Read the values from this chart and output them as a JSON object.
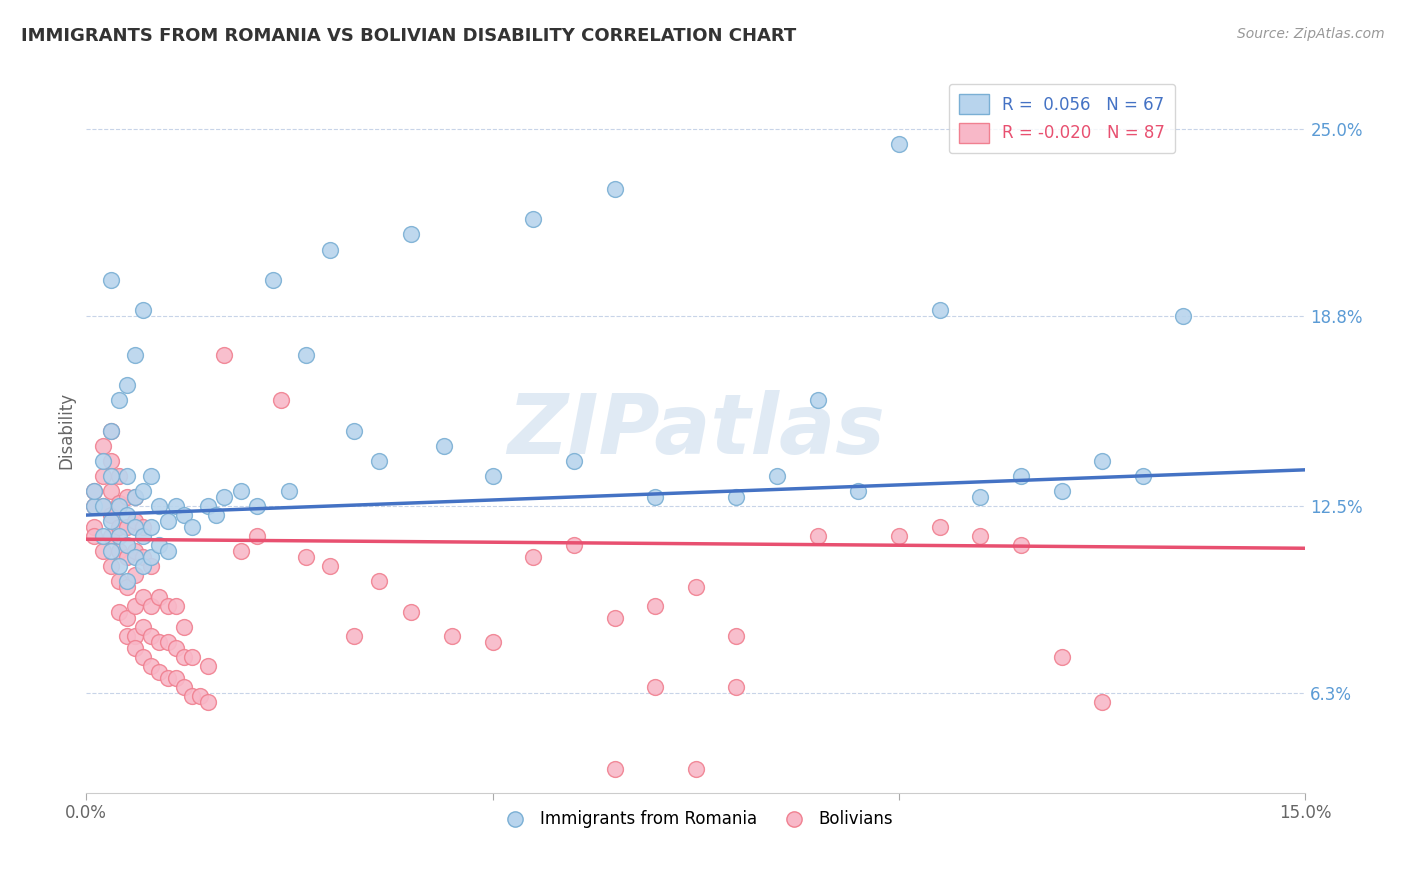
{
  "title": "IMMIGRANTS FROM ROMANIA VS BOLIVIAN DISABILITY CORRELATION CHART",
  "source": "Source: ZipAtlas.com",
  "ylabel": "Disability",
  "xlim": [
    0.0,
    0.15
  ],
  "ylim": [
    0.03,
    0.27
  ],
  "xticks": [
    0.0,
    0.05,
    0.1,
    0.15
  ],
  "xticklabels": [
    "0.0%",
    "",
    "",
    "15.0%"
  ],
  "ytick_positions": [
    0.063,
    0.125,
    0.188,
    0.25
  ],
  "yticklabels": [
    "6.3%",
    "12.5%",
    "18.8%",
    "25.0%"
  ],
  "romania_R": 0.056,
  "romania_N": 67,
  "bolivian_R": -0.02,
  "bolivian_N": 87,
  "romania_color": "#b8d4ed",
  "bolivian_color": "#f8b8c8",
  "romania_edge": "#7aafd4",
  "bolivian_edge": "#f08090",
  "trend_romania_color": "#4472c4",
  "trend_bolivian_color": "#e85070",
  "background_color": "#ffffff",
  "grid_color": "#c8d4e8",
  "watermark": "ZIPatlas",
  "romania_x": [
    0.001,
    0.001,
    0.002,
    0.002,
    0.002,
    0.003,
    0.003,
    0.003,
    0.003,
    0.003,
    0.004,
    0.004,
    0.004,
    0.004,
    0.005,
    0.005,
    0.005,
    0.005,
    0.005,
    0.006,
    0.006,
    0.006,
    0.006,
    0.007,
    0.007,
    0.007,
    0.007,
    0.008,
    0.008,
    0.008,
    0.009,
    0.009,
    0.01,
    0.01,
    0.011,
    0.012,
    0.013,
    0.015,
    0.016,
    0.017,
    0.019,
    0.021,
    0.023,
    0.025,
    0.027,
    0.03,
    0.033,
    0.036,
    0.04,
    0.044,
    0.05,
    0.055,
    0.06,
    0.065,
    0.07,
    0.08,
    0.085,
    0.09,
    0.095,
    0.1,
    0.105,
    0.11,
    0.115,
    0.12,
    0.125,
    0.13,
    0.135
  ],
  "romania_y": [
    0.125,
    0.13,
    0.115,
    0.125,
    0.14,
    0.11,
    0.12,
    0.135,
    0.15,
    0.2,
    0.105,
    0.115,
    0.125,
    0.16,
    0.1,
    0.112,
    0.122,
    0.135,
    0.165,
    0.108,
    0.118,
    0.128,
    0.175,
    0.105,
    0.115,
    0.13,
    0.19,
    0.108,
    0.118,
    0.135,
    0.112,
    0.125,
    0.11,
    0.12,
    0.125,
    0.122,
    0.118,
    0.125,
    0.122,
    0.128,
    0.13,
    0.125,
    0.2,
    0.13,
    0.175,
    0.21,
    0.15,
    0.14,
    0.215,
    0.145,
    0.135,
    0.22,
    0.14,
    0.23,
    0.128,
    0.128,
    0.135,
    0.16,
    0.13,
    0.245,
    0.19,
    0.128,
    0.135,
    0.13,
    0.14,
    0.135,
    0.188
  ],
  "bolivian_x": [
    0.001,
    0.001,
    0.001,
    0.001,
    0.002,
    0.002,
    0.002,
    0.002,
    0.003,
    0.003,
    0.003,
    0.003,
    0.003,
    0.003,
    0.004,
    0.004,
    0.004,
    0.004,
    0.004,
    0.004,
    0.005,
    0.005,
    0.005,
    0.005,
    0.005,
    0.005,
    0.006,
    0.006,
    0.006,
    0.006,
    0.006,
    0.006,
    0.006,
    0.007,
    0.007,
    0.007,
    0.007,
    0.007,
    0.008,
    0.008,
    0.008,
    0.008,
    0.009,
    0.009,
    0.009,
    0.01,
    0.01,
    0.01,
    0.011,
    0.011,
    0.011,
    0.012,
    0.012,
    0.012,
    0.013,
    0.013,
    0.014,
    0.015,
    0.015,
    0.017,
    0.019,
    0.021,
    0.024,
    0.027,
    0.03,
    0.033,
    0.036,
    0.04,
    0.045,
    0.05,
    0.055,
    0.06,
    0.065,
    0.07,
    0.075,
    0.08,
    0.09,
    0.1,
    0.105,
    0.11,
    0.115,
    0.12,
    0.125,
    0.065,
    0.07,
    0.075,
    0.08
  ],
  "bolivian_y": [
    0.125,
    0.118,
    0.13,
    0.115,
    0.11,
    0.125,
    0.135,
    0.145,
    0.105,
    0.115,
    0.122,
    0.13,
    0.14,
    0.15,
    0.1,
    0.11,
    0.118,
    0.126,
    0.135,
    0.09,
    0.088,
    0.098,
    0.108,
    0.118,
    0.128,
    0.082,
    0.082,
    0.092,
    0.102,
    0.11,
    0.12,
    0.128,
    0.078,
    0.075,
    0.085,
    0.095,
    0.108,
    0.118,
    0.072,
    0.082,
    0.092,
    0.105,
    0.07,
    0.08,
    0.095,
    0.068,
    0.08,
    0.092,
    0.068,
    0.078,
    0.092,
    0.065,
    0.075,
    0.085,
    0.062,
    0.075,
    0.062,
    0.06,
    0.072,
    0.175,
    0.11,
    0.115,
    0.16,
    0.108,
    0.105,
    0.082,
    0.1,
    0.09,
    0.082,
    0.08,
    0.108,
    0.112,
    0.088,
    0.092,
    0.098,
    0.082,
    0.115,
    0.115,
    0.118,
    0.115,
    0.112,
    0.075,
    0.06,
    0.038,
    0.065,
    0.038,
    0.065
  ]
}
